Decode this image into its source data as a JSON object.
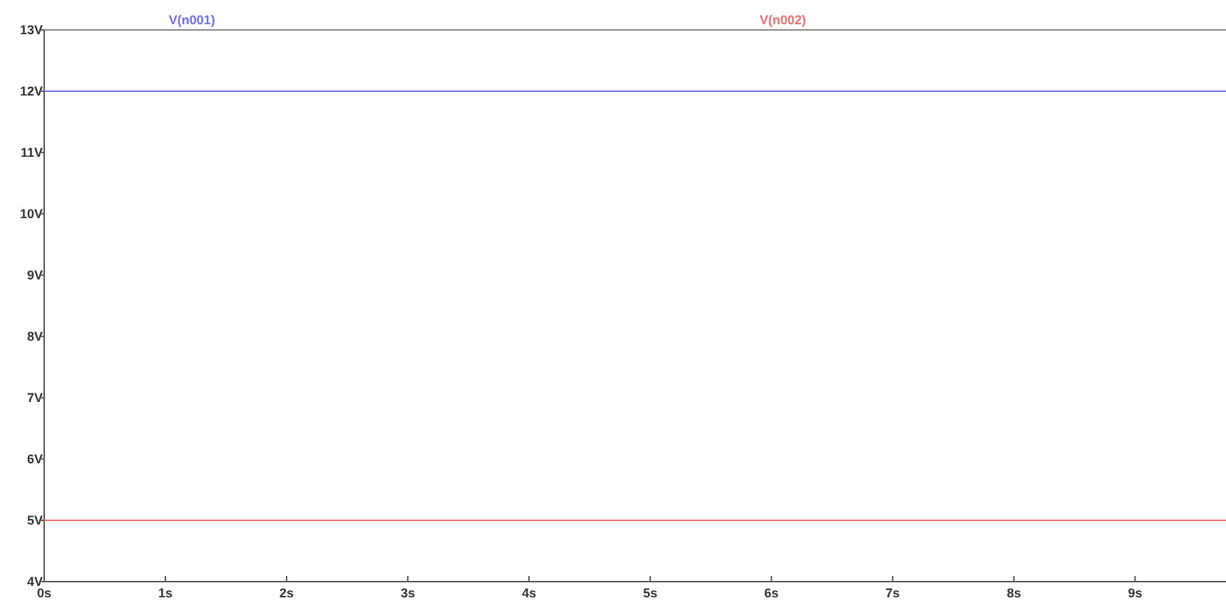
{
  "chart_data": {
    "type": "line",
    "x": [
      0,
      9.75
    ],
    "series": [
      {
        "name": "V(n001)",
        "color": "#6f6ff5",
        "values": [
          12,
          12
        ]
      },
      {
        "name": "V(n002)",
        "color": "#f26f6f",
        "values": [
          5,
          5
        ]
      }
    ],
    "xlim": [
      0,
      9.75
    ],
    "ylim": [
      4,
      13
    ],
    "xticks": [
      {
        "value": 0,
        "label": "0s"
      },
      {
        "value": 1,
        "label": "1s"
      },
      {
        "value": 2,
        "label": "2s"
      },
      {
        "value": 3,
        "label": "3s"
      },
      {
        "value": 4,
        "label": "4s"
      },
      {
        "value": 5,
        "label": "5s"
      },
      {
        "value": 6,
        "label": "6s"
      },
      {
        "value": 7,
        "label": "7s"
      },
      {
        "value": 8,
        "label": "8s"
      },
      {
        "value": 9,
        "label": "9s"
      }
    ],
    "yticks": [
      {
        "value": 4,
        "label": "4V"
      },
      {
        "value": 5,
        "label": "5V"
      },
      {
        "value": 6,
        "label": "6V"
      },
      {
        "value": 7,
        "label": "7V"
      },
      {
        "value": 8,
        "label": "8V"
      },
      {
        "value": 9,
        "label": "9V"
      },
      {
        "value": 10,
        "label": "10V"
      },
      {
        "value": 11,
        "label": "11V"
      },
      {
        "value": 12,
        "label": "12V"
      },
      {
        "value": 13,
        "label": "13V"
      }
    ],
    "legend": "top",
    "grid": false,
    "marker": "none",
    "line_style": "solid"
  }
}
